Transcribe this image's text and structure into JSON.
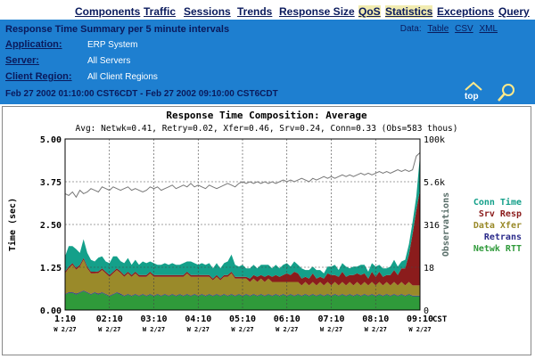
{
  "nav": {
    "items": [
      {
        "label": "Components",
        "active": false
      },
      {
        "label": "Traffic",
        "active": false
      },
      {
        "label": "Sessions",
        "active": false
      },
      {
        "label": "Trends",
        "active": false
      },
      {
        "label": "Response Size",
        "active": false
      },
      {
        "label": "QoS",
        "active": true
      },
      {
        "label": "Statistics",
        "active": true
      },
      {
        "label": "Exceptions",
        "active": false
      },
      {
        "label": "Query",
        "active": false
      }
    ]
  },
  "header": {
    "title": "Response Time Summary per 5 minute intervals",
    "data_prefix": "Data:",
    "data_links": [
      "Table",
      "CSV",
      "XML"
    ],
    "application_label": "Application:",
    "application_value": "ERP System",
    "server_label": "Server:",
    "server_value": "All Servers",
    "region_label": "Client Region:",
    "region_value": "All Client Regions",
    "time_range": "Feb 27 2002  01:10:00 CST6CDT  -  Feb 27 2002  09:10:00 CST6CDT",
    "top_label": "top",
    "icons": {
      "top": "home-up-icon",
      "zoom": "magnifier-icon"
    },
    "colors": {
      "header_bg": "#1e7fd0",
      "nav_text": "#0a1a5c",
      "active_tab": "#f2ecb0"
    }
  },
  "chart_data": {
    "type": "area",
    "title": "Response Time Composition: Average",
    "subtitle": "Avg: Netwk=0.41, Retry=0.02, Xfer=0.46, Srv=0.24, Conn=0.33 (Obs=583 thous)",
    "ylabel": "Time (sec)",
    "y2label": "Observations",
    "ylim": [
      0,
      5
    ],
    "yticks": [
      "5.00",
      "3.75",
      "2.50",
      "1.25",
      "0.00"
    ],
    "y2ticks": [
      "100k",
      "5.6k",
      "316",
      "18",
      "0"
    ],
    "y2scale": "log",
    "xticks": [
      {
        "time": "1:10",
        "date": "W 2/27"
      },
      {
        "time": "02:10",
        "date": "W 2/27"
      },
      {
        "time": "03:10",
        "date": "W 2/27"
      },
      {
        "time": "04:10",
        "date": "W 2/27"
      },
      {
        "time": "05:10",
        "date": "W 2/27"
      },
      {
        "time": "06:10",
        "date": "W 2/27"
      },
      {
        "time": "07:10",
        "date": "W 2/27"
      },
      {
        "time": "08:10",
        "date": "W 2/27"
      },
      {
        "time": "09:10",
        "date": "W 2/27"
      }
    ],
    "xunit": "CST",
    "grid": true,
    "legend_position": "right",
    "series": [
      {
        "name": "Conn Time",
        "color": "#14a08a",
        "values": [
          0.45,
          0.6,
          0.5,
          0.55,
          0.35,
          0.55,
          0.4,
          0.35,
          0.3,
          0.4,
          0.35,
          0.3,
          0.35,
          0.45,
          0.35,
          0.3,
          0.35,
          0.4,
          0.3,
          0.35,
          0.3,
          0.4,
          0.35,
          0.3,
          0.35,
          0.3,
          0.3,
          0.35,
          0.3,
          0.35,
          0.3,
          0.3,
          0.35,
          0.3,
          0.4,
          0.35,
          0.3,
          0.35,
          0.3,
          0.35,
          0.3,
          0.35,
          0.3,
          0.35,
          0.4,
          0.5,
          0.35,
          0.3,
          0.35,
          0.25,
          0.3,
          0.3,
          0.25,
          0.3,
          0.35,
          0.3,
          0.25,
          0.3,
          0.25,
          0.3,
          0.3,
          0.25,
          0.3,
          0.25,
          0.3,
          0.2,
          0.25,
          0.2,
          0.25,
          0.2,
          0.15,
          0.2,
          0.25,
          0.3,
          0.2,
          0.25,
          0.3,
          0.2,
          0.25,
          0.2,
          0.3,
          0.25,
          0.2,
          0.25,
          0.3,
          0.2,
          0.25,
          0.2,
          0.25,
          0.3,
          0.25,
          0.2,
          0.25,
          0.3,
          0.35,
          0.4,
          1.0
        ]
      },
      {
        "name": "Srv Resp",
        "color": "#8b1c1c",
        "values": [
          0.05,
          0.05,
          0.05,
          0.05,
          0.05,
          0.05,
          0.05,
          0.05,
          0.05,
          0.05,
          0.05,
          0.05,
          0.05,
          0.05,
          0.05,
          0.05,
          0.05,
          0.05,
          0.05,
          0.05,
          0.05,
          0.05,
          0.05,
          0.05,
          0.05,
          0.05,
          0.05,
          0.05,
          0.05,
          0.05,
          0.05,
          0.05,
          0.05,
          0.05,
          0.05,
          0.05,
          0.05,
          0.05,
          0.05,
          0.05,
          0.05,
          0.05,
          0.05,
          0.05,
          0.05,
          0.05,
          0.05,
          0.05,
          0.05,
          0.05,
          0.1,
          0.1,
          0.15,
          0.1,
          0.15,
          0.1,
          0.15,
          0.2,
          0.15,
          0.2,
          0.25,
          0.2,
          0.3,
          0.25,
          0.2,
          0.15,
          0.2,
          0.25,
          0.2,
          0.15,
          0.2,
          0.25,
          0.3,
          0.2,
          0.25,
          0.3,
          0.25,
          0.2,
          0.3,
          0.25,
          0.3,
          0.25,
          0.2,
          0.3,
          0.25,
          0.3,
          0.25,
          0.2,
          0.3,
          0.35,
          0.3,
          0.4,
          0.5,
          0.8,
          1.5,
          2.2,
          2.8
        ]
      },
      {
        "name": "Data Xfer",
        "color": "#9a8a2a",
        "values": [
          0.6,
          0.7,
          0.8,
          0.7,
          0.75,
          0.9,
          0.7,
          0.6,
          0.55,
          0.6,
          0.65,
          0.6,
          0.55,
          0.6,
          0.65,
          0.6,
          0.55,
          0.6,
          0.55,
          0.6,
          0.55,
          0.5,
          0.55,
          0.6,
          0.55,
          0.5,
          0.55,
          0.5,
          0.55,
          0.5,
          0.55,
          0.5,
          0.55,
          0.6,
          0.55,
          0.5,
          0.55,
          0.5,
          0.55,
          0.5,
          0.45,
          0.5,
          0.45,
          0.5,
          0.55,
          0.6,
          0.5,
          0.45,
          0.5,
          0.45,
          0.4,
          0.45,
          0.4,
          0.45,
          0.4,
          0.45,
          0.4,
          0.35,
          0.4,
          0.35,
          0.4,
          0.35,
          0.4,
          0.35,
          0.3,
          0.35,
          0.3,
          0.35,
          0.3,
          0.35,
          0.3,
          0.35,
          0.3,
          0.35,
          0.3,
          0.35,
          0.3,
          0.35,
          0.3,
          0.35,
          0.3,
          0.35,
          0.3,
          0.35,
          0.3,
          0.35,
          0.3,
          0.35,
          0.3,
          0.35,
          0.3,
          0.35,
          0.3,
          0.35,
          0.3,
          0.3,
          0.3
        ]
      },
      {
        "name": "Retrans",
        "color": "#2a2a8a",
        "values": [
          0.02,
          0.02,
          0.02,
          0.03,
          0.02,
          0.02,
          0.02,
          0.02,
          0.02,
          0.03,
          0.02,
          0.02,
          0.02,
          0.02,
          0.02,
          0.03,
          0.02,
          0.02,
          0.02,
          0.02,
          0.02,
          0.02,
          0.02,
          0.02,
          0.02,
          0.02,
          0.02,
          0.02,
          0.02,
          0.02,
          0.02,
          0.02,
          0.02,
          0.02,
          0.02,
          0.02,
          0.02,
          0.02,
          0.02,
          0.02,
          0.02,
          0.02,
          0.02,
          0.02,
          0.02,
          0.02,
          0.02,
          0.02,
          0.02,
          0.02,
          0.02,
          0.02,
          0.02,
          0.02,
          0.02,
          0.02,
          0.02,
          0.02,
          0.02,
          0.02,
          0.02,
          0.02,
          0.02,
          0.02,
          0.02,
          0.02,
          0.02,
          0.02,
          0.02,
          0.02,
          0.02,
          0.02,
          0.02,
          0.02,
          0.02,
          0.02,
          0.02,
          0.02,
          0.02,
          0.02,
          0.02,
          0.02,
          0.02,
          0.02,
          0.02,
          0.02,
          0.02,
          0.02,
          0.02,
          0.02,
          0.02,
          0.02,
          0.02,
          0.02,
          0.02,
          0.02,
          0.02
        ]
      },
      {
        "name": "Netwk RTT",
        "color": "#2f9a3a",
        "values": [
          0.45,
          0.5,
          0.5,
          0.45,
          0.5,
          0.55,
          0.5,
          0.45,
          0.5,
          0.45,
          0.5,
          0.45,
          0.4,
          0.45,
          0.5,
          0.45,
          0.4,
          0.45,
          0.4,
          0.45,
          0.4,
          0.45,
          0.4,
          0.45,
          0.4,
          0.45,
          0.4,
          0.45,
          0.4,
          0.45,
          0.4,
          0.45,
          0.4,
          0.45,
          0.4,
          0.45,
          0.4,
          0.45,
          0.4,
          0.45,
          0.4,
          0.45,
          0.4,
          0.45,
          0.4,
          0.45,
          0.4,
          0.45,
          0.4,
          0.45,
          0.4,
          0.45,
          0.4,
          0.45,
          0.4,
          0.45,
          0.4,
          0.45,
          0.4,
          0.45,
          0.4,
          0.45,
          0.4,
          0.45,
          0.4,
          0.45,
          0.4,
          0.45,
          0.4,
          0.45,
          0.4,
          0.45,
          0.4,
          0.45,
          0.4,
          0.45,
          0.4,
          0.45,
          0.4,
          0.45,
          0.4,
          0.45,
          0.4,
          0.45,
          0.4,
          0.45,
          0.4,
          0.45,
          0.4,
          0.45,
          0.4,
          0.45,
          0.4,
          0.45,
          0.4,
          0.4,
          0.4
        ]
      }
    ],
    "observations_series": {
      "name": "Observations",
      "color": "#777777",
      "values": [
        3.4,
        3.35,
        3.45,
        3.3,
        3.5,
        3.4,
        3.45,
        3.55,
        3.5,
        3.45,
        3.6,
        3.55,
        3.5,
        3.6,
        3.55,
        3.5,
        3.55,
        3.6,
        3.5,
        3.55,
        3.5,
        3.45,
        3.5,
        3.6,
        3.55,
        3.6,
        3.5,
        3.55,
        3.6,
        3.65,
        3.55,
        3.6,
        3.65,
        3.6,
        3.7,
        3.6,
        3.65,
        3.6,
        3.55,
        3.65,
        3.6,
        3.55,
        3.6,
        3.65,
        3.7,
        3.65,
        3.6,
        3.7,
        3.75,
        3.7,
        3.75,
        3.7,
        3.75,
        3.7,
        3.75,
        3.7,
        3.75,
        3.7,
        3.75,
        3.8,
        3.75,
        3.8,
        3.75,
        3.8,
        3.85,
        3.8,
        3.75,
        3.85,
        3.8,
        3.85,
        3.9,
        3.85,
        3.9,
        3.85,
        3.9,
        3.95,
        3.9,
        3.95,
        3.9,
        3.95,
        4.0,
        3.95,
        4.0,
        3.95,
        4.0,
        4.05,
        4.0,
        4.05,
        4.0,
        4.05,
        4.1,
        4.05,
        4.1,
        4.05,
        4.1,
        4.5,
        4.6
      ]
    }
  }
}
